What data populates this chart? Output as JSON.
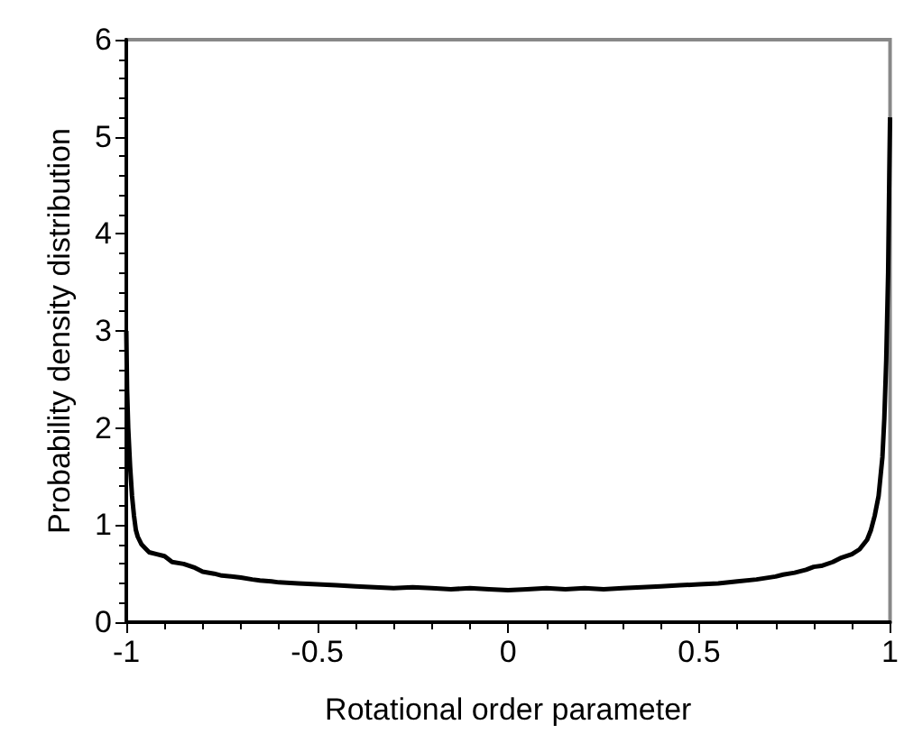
{
  "chart_data": {
    "type": "line",
    "xlabel": "Rotational order parameter",
    "ylabel": "Probability density distribution",
    "xlim": [
      -1,
      1
    ],
    "ylim": [
      0,
      6
    ],
    "xticks": [
      -1,
      -0.5,
      0,
      0.5,
      1
    ],
    "yticks": [
      0,
      1,
      2,
      3,
      4,
      5,
      6
    ],
    "grid": false,
    "marker": "none",
    "line_style": "solid",
    "series": [
      {
        "color": "#000000",
        "x": [
          -1,
          -0.998,
          -0.995,
          -0.99,
          -0.985,
          -0.98,
          -0.975,
          -0.97,
          -0.96,
          -0.95,
          -0.94,
          -0.92,
          -0.9,
          -0.88,
          -0.85,
          -0.82,
          -0.8,
          -0.77,
          -0.75,
          -0.72,
          -0.7,
          -0.67,
          -0.65,
          -0.62,
          -0.6,
          -0.55,
          -0.5,
          -0.45,
          -0.4,
          -0.35,
          -0.3,
          -0.25,
          -0.2,
          -0.15,
          -0.1,
          -0.05,
          0,
          0.05,
          0.1,
          0.15,
          0.2,
          0.25,
          0.3,
          0.35,
          0.4,
          0.45,
          0.5,
          0.55,
          0.6,
          0.65,
          0.7,
          0.72,
          0.75,
          0.78,
          0.8,
          0.82,
          0.85,
          0.87,
          0.9,
          0.92,
          0.94,
          0.95,
          0.96,
          0.97,
          0.98,
          0.985,
          0.99,
          0.995,
          0.998,
          1
        ],
        "values": [
          3.0,
          2.4,
          2.0,
          1.6,
          1.3,
          1.1,
          0.95,
          0.88,
          0.8,
          0.76,
          0.72,
          0.7,
          0.68,
          0.62,
          0.6,
          0.56,
          0.52,
          0.5,
          0.48,
          0.47,
          0.46,
          0.44,
          0.43,
          0.42,
          0.41,
          0.4,
          0.39,
          0.38,
          0.37,
          0.36,
          0.35,
          0.36,
          0.35,
          0.34,
          0.35,
          0.34,
          0.33,
          0.34,
          0.35,
          0.34,
          0.35,
          0.34,
          0.35,
          0.36,
          0.37,
          0.38,
          0.39,
          0.4,
          0.42,
          0.44,
          0.47,
          0.49,
          0.51,
          0.54,
          0.57,
          0.58,
          0.62,
          0.66,
          0.7,
          0.75,
          0.85,
          0.95,
          1.1,
          1.3,
          1.7,
          2.1,
          2.7,
          3.6,
          4.6,
          5.2
        ]
      }
    ]
  }
}
